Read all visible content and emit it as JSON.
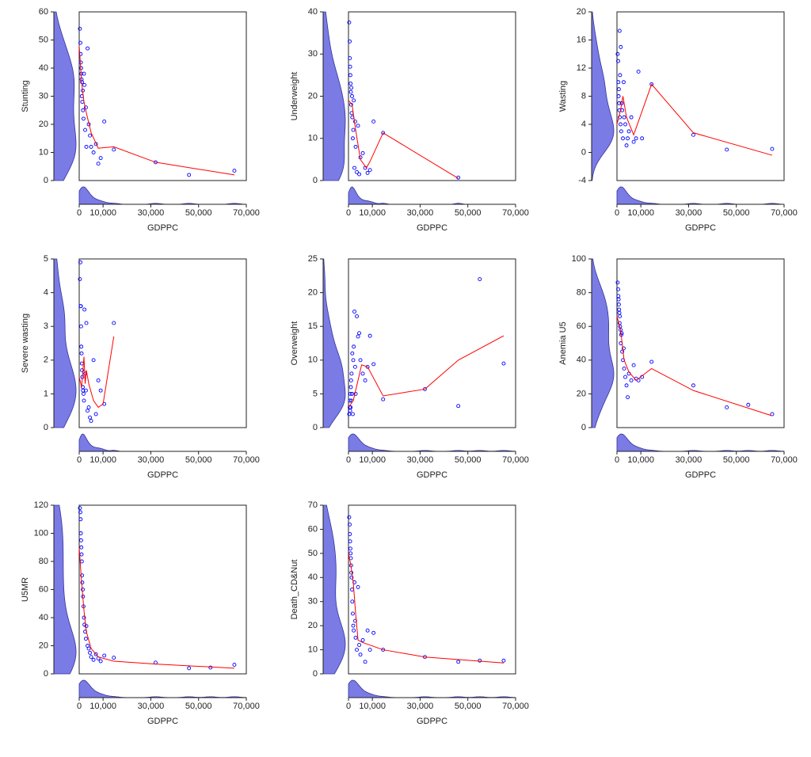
{
  "chart_data": [
    {
      "type": "scatter",
      "y_label": "Stunting",
      "x_label": "GDPPC",
      "xlim": [
        0,
        70000
      ],
      "xticks": [
        0,
        {
          "value": 10000,
          "label": "10,000"
        },
        {
          "value": 30000,
          "label": "30,000"
        },
        {
          "value": 50000,
          "label": "50,000"
        },
        {
          "value": 70000,
          "label": "70,000"
        }
      ],
      "ylim": [
        0,
        60
      ],
      "yticks": [
        0,
        10,
        20,
        30,
        40,
        50,
        60
      ],
      "color": "#0000ff",
      "density_color": "#7b7be6",
      "x": [
        300,
        500,
        600,
        700,
        800,
        900,
        1000,
        1100,
        1200,
        1300,
        1500,
        1600,
        1800,
        2000,
        2200,
        2500,
        2800,
        3000,
        3500,
        4000,
        4500,
        5000,
        6000,
        7000,
        8000,
        9000,
        10500,
        14500,
        32000,
        46000,
        65000
      ],
      "values": [
        54,
        49,
        45,
        42,
        40,
        38,
        36,
        30,
        35,
        28,
        32,
        25,
        22,
        38,
        34,
        18,
        26,
        12,
        47,
        20,
        16,
        12,
        10,
        13,
        6,
        8,
        21,
        11,
        6.5,
        2,
        3.5
      ],
      "fit": {
        "color": "#ff0000",
        "x": [
          0,
          1000,
          2000,
          3000,
          5000,
          8000,
          14500,
          32000,
          65000
        ],
        "values": [
          48,
          35,
          28,
          24,
          17,
          11.5,
          12,
          6.5,
          2
        ]
      }
    },
    {
      "type": "scatter",
      "y_label": "Underweight",
      "x_label": "GDPPC",
      "xlim": [
        0,
        70000
      ],
      "xticks": [
        0,
        {
          "value": 10000,
          "label": "10,000"
        },
        {
          "value": 30000,
          "label": "30,000"
        },
        {
          "value": 50000,
          "label": "50,000"
        },
        {
          "value": 70000,
          "label": "70,000"
        }
      ],
      "ylim": [
        0,
        40
      ],
      "yticks": [
        0,
        10,
        20,
        30,
        40
      ],
      "color": "#0000ff",
      "density_color": "#7b7be6",
      "x": [
        300,
        500,
        600,
        700,
        800,
        900,
        1000,
        1100,
        1200,
        1300,
        1500,
        1600,
        1800,
        2000,
        2200,
        2500,
        2800,
        3000,
        3500,
        4000,
        4500,
        5000,
        6000,
        7000,
        8000,
        9000,
        10500,
        14500,
        46000
      ],
      "values": [
        37.5,
        33,
        29,
        27,
        25,
        23,
        21,
        18,
        22,
        16,
        20,
        15,
        10,
        12,
        19,
        3,
        14,
        8,
        2,
        13,
        1.5,
        5.5,
        6.5,
        3,
        1.8,
        2.5,
        14,
        11.3,
        0.7
      ],
      "fit": {
        "color": "#ff0000",
        "x": [
          0,
          1500,
          3000,
          5000,
          7500,
          9000,
          14500,
          46000
        ],
        "values": [
          19,
          18,
          12,
          5,
          3,
          4.5,
          11.3,
          0.5
        ]
      }
    },
    {
      "type": "scatter",
      "y_label": "Wasting",
      "x_label": "GDPPC",
      "xlim": [
        0,
        70000
      ],
      "xticks": [
        0,
        {
          "value": 10000,
          "label": "10,000"
        },
        {
          "value": 30000,
          "label": "30,000"
        },
        {
          "value": 50000,
          "label": "50,000"
        },
        {
          "value": 70000,
          "label": "70,000"
        }
      ],
      "ylim": [
        -4,
        20
      ],
      "yticks": [
        -4,
        0,
        4,
        8,
        12,
        16,
        20
      ],
      "color": "#0000ff",
      "density_color": "#7b7be6",
      "x": [
        300,
        500,
        600,
        700,
        800,
        900,
        1000,
        1100,
        1200,
        1300,
        1500,
        1600,
        1800,
        2000,
        2200,
        2500,
        2800,
        3000,
        3500,
        4000,
        4500,
        5000,
        6000,
        7000,
        8000,
        9000,
        10500,
        14500,
        32000,
        46000,
        65000
      ],
      "values": [
        14,
        13,
        10,
        8,
        9,
        7,
        6,
        17.3,
        5,
        11,
        4,
        15,
        3,
        7,
        6,
        2,
        10,
        5,
        4,
        1,
        2,
        3,
        5,
        1.5,
        2,
        11.5,
        2,
        9.7,
        2.5,
        0.4,
        0.5
      ],
      "fit": {
        "color": "#ff0000",
        "x": [
          0,
          1500,
          2500,
          4000,
          7000,
          14500,
          32000,
          65000
        ],
        "values": [
          4,
          6,
          8,
          5,
          2.5,
          9.7,
          2.8,
          -0.4
        ]
      }
    },
    {
      "type": "scatter",
      "y_label": "Severe wasting",
      "x_label": "GDPPC",
      "xlim": [
        0,
        70000
      ],
      "xticks": [
        0,
        {
          "value": 10000,
          "label": "10,000"
        },
        {
          "value": 30000,
          "label": "30,000"
        },
        {
          "value": 50000,
          "label": "50,000"
        },
        {
          "value": 70000,
          "label": "70,000"
        }
      ],
      "ylim": [
        0,
        5
      ],
      "yticks": [
        0,
        1,
        2,
        3,
        4,
        5
      ],
      "color": "#0000ff",
      "density_color": "#7b7be6",
      "x": [
        300,
        500,
        600,
        700,
        800,
        900,
        1000,
        1100,
        1200,
        1300,
        1500,
        1600,
        1800,
        2000,
        2200,
        2500,
        2800,
        3000,
        3500,
        4000,
        4500,
        5000,
        6000,
        7000,
        8000,
        9000,
        10500,
        14500
      ],
      "values": [
        4.4,
        4.9,
        3.6,
        3.6,
        3,
        2.4,
        2.2,
        1.9,
        1.7,
        1.5,
        1.2,
        1.1,
        1,
        0.8,
        3.5,
        1.6,
        1.1,
        3.1,
        0.5,
        0.6,
        0.3,
        0.2,
        2,
        0.4,
        1.4,
        1.1,
        0.7,
        3.1
      ],
      "fit": {
        "color": "#ff0000",
        "x": [
          0,
          1000,
          2000,
          2500,
          3000,
          4000,
          6000,
          8000,
          10000,
          14500
        ],
        "values": [
          1.5,
          1.2,
          2.1,
          1.3,
          1.7,
          1.3,
          0.8,
          0.6,
          0.7,
          2.7
        ]
      }
    },
    {
      "type": "scatter",
      "y_label": "Overweight",
      "x_label": "GDPPC",
      "xlim": [
        0,
        70000
      ],
      "xticks": [
        0,
        {
          "value": 10000,
          "label": "10,000"
        },
        {
          "value": 30000,
          "label": "30,000"
        },
        {
          "value": 50000,
          "label": "50,000"
        },
        {
          "value": 70000,
          "label": "70,000"
        }
      ],
      "ylim": [
        0,
        25
      ],
      "yticks": [
        0,
        5,
        10,
        15,
        20,
        25
      ],
      "color": "#0000ff",
      "density_color": "#7b7be6",
      "x": [
        300,
        500,
        600,
        700,
        800,
        900,
        1000,
        1100,
        1200,
        1300,
        1500,
        1600,
        1800,
        2000,
        2200,
        2500,
        2800,
        3000,
        3500,
        4000,
        4500,
        5000,
        6000,
        7000,
        8000,
        9000,
        10500,
        14500,
        32000,
        46000,
        55000,
        65000
      ],
      "values": [
        2,
        3,
        4,
        2.5,
        5,
        3,
        6,
        7,
        4,
        8,
        5,
        11,
        2,
        10,
        12,
        17.2,
        9,
        5,
        16.5,
        13.5,
        14,
        10,
        8,
        7,
        9,
        13.6,
        9.4,
        4.2,
        5.7,
        3.2,
        22,
        9.5
      ],
      "fit": {
        "color": "#ff0000",
        "x": [
          0,
          2000,
          4000,
          5500,
          8000,
          14500,
          32000,
          46000,
          65000
        ],
        "values": [
          3,
          4,
          7,
          9.3,
          9,
          4.7,
          5.7,
          10,
          13.6
        ]
      }
    },
    {
      "type": "scatter",
      "y_label": "Anemia U5",
      "x_label": "GDPPC",
      "xlim": [
        0,
        70000
      ],
      "xticks": [
        0,
        {
          "value": 10000,
          "label": "10,000"
        },
        {
          "value": 30000,
          "label": "30,000"
        },
        {
          "value": 50000,
          "label": "50,000"
        },
        {
          "value": 70000,
          "label": "70,000"
        }
      ],
      "ylim": [
        0,
        100
      ],
      "yticks": [
        0,
        20,
        40,
        60,
        80,
        100
      ],
      "color": "#0000ff",
      "density_color": "#7b7be6",
      "x": [
        300,
        500,
        600,
        700,
        800,
        900,
        1000,
        1100,
        1200,
        1300,
        1500,
        1600,
        1800,
        2000,
        2200,
        2500,
        2800,
        3000,
        3500,
        4000,
        4500,
        5000,
        6000,
        7000,
        8000,
        9000,
        10500,
        14500,
        32000,
        46000,
        55000,
        65000
      ],
      "values": [
        86,
        82,
        78,
        76,
        73,
        70,
        68,
        62,
        66,
        60,
        58,
        50,
        55,
        56,
        45,
        40,
        47,
        35,
        30,
        25,
        18,
        32,
        28,
        37,
        29,
        28,
        30,
        39,
        25,
        12,
        13.5,
        8
      ],
      "fit": {
        "color": "#ff0000",
        "x": [
          0,
          1500,
          3000,
          5000,
          8000,
          14500,
          32000,
          65000
        ],
        "values": [
          66,
          58,
          40,
          33,
          28,
          35,
          22,
          7
        ]
      }
    },
    {
      "type": "scatter",
      "y_label": "U5MR",
      "x_label": "GDPPC",
      "xlim": [
        0,
        70000
      ],
      "xticks": [
        0,
        {
          "value": 10000,
          "label": "10,000"
        },
        {
          "value": 30000,
          "label": "30,000"
        },
        {
          "value": 50000,
          "label": "50,000"
        },
        {
          "value": 70000,
          "label": "70,000"
        }
      ],
      "ylim": [
        0,
        120
      ],
      "yticks": [
        0,
        20,
        40,
        60,
        80,
        100,
        120
      ],
      "color": "#0000ff",
      "density_color": "#7b7be6",
      "x": [
        300,
        500,
        600,
        700,
        800,
        900,
        1000,
        1100,
        1200,
        1300,
        1500,
        1600,
        1800,
        2000,
        2200,
        2500,
        2800,
        3000,
        3500,
        4000,
        4500,
        5000,
        6000,
        7000,
        8000,
        9000,
        10500,
        14500,
        32000,
        46000,
        55000,
        65000
      ],
      "values": [
        118,
        115,
        110,
        100,
        95,
        90,
        85,
        80,
        70,
        65,
        60,
        55,
        48,
        40,
        35,
        30,
        25,
        34,
        20,
        18,
        15,
        12,
        10,
        14,
        11,
        9,
        13,
        11.5,
        8,
        4,
        4.5,
        6.5
      ],
      "fit": {
        "color": "#ff0000",
        "x": [
          0,
          1000,
          2000,
          3000,
          5000,
          8000,
          14500,
          32000,
          65000
        ],
        "values": [
          90,
          65,
          45,
          30,
          18,
          12,
          9,
          7,
          4
        ]
      }
    },
    {
      "type": "scatter",
      "y_label": "Death_CD&Nut",
      "x_label": "GDPPC",
      "xlim": [
        0,
        70000
      ],
      "xticks": [
        0,
        {
          "value": 10000,
          "label": "10,000"
        },
        {
          "value": 30000,
          "label": "30,000"
        },
        {
          "value": 50000,
          "label": "50,000"
        },
        {
          "value": 70000,
          "label": "70,000"
        }
      ],
      "ylim": [
        0,
        70
      ],
      "yticks": [
        0,
        10,
        20,
        30,
        40,
        50,
        60,
        70
      ],
      "color": "#0000ff",
      "density_color": "#7b7be6",
      "x": [
        300,
        500,
        600,
        700,
        800,
        900,
        1000,
        1100,
        1200,
        1300,
        1500,
        1600,
        1800,
        2000,
        2200,
        2500,
        2800,
        3000,
        3500,
        4000,
        4500,
        5000,
        6000,
        7000,
        8000,
        9000,
        10500,
        14500,
        32000,
        46000,
        55000,
        65000
      ],
      "values": [
        65,
        62,
        58,
        55,
        52,
        50,
        48,
        45,
        42,
        40,
        35,
        30,
        25,
        20,
        18,
        38,
        22,
        15,
        10,
        36,
        12,
        8,
        14,
        5,
        18,
        10,
        17,
        10,
        7,
        5,
        5.5,
        5.5
      ],
      "fit": {
        "color": "#ff0000",
        "x": [
          0,
          1000,
          2000,
          3000,
          4000,
          6000,
          14500,
          32000,
          65000
        ],
        "values": [
          50,
          45,
          38,
          25,
          14,
          13,
          10,
          7,
          4.5
        ]
      }
    }
  ]
}
